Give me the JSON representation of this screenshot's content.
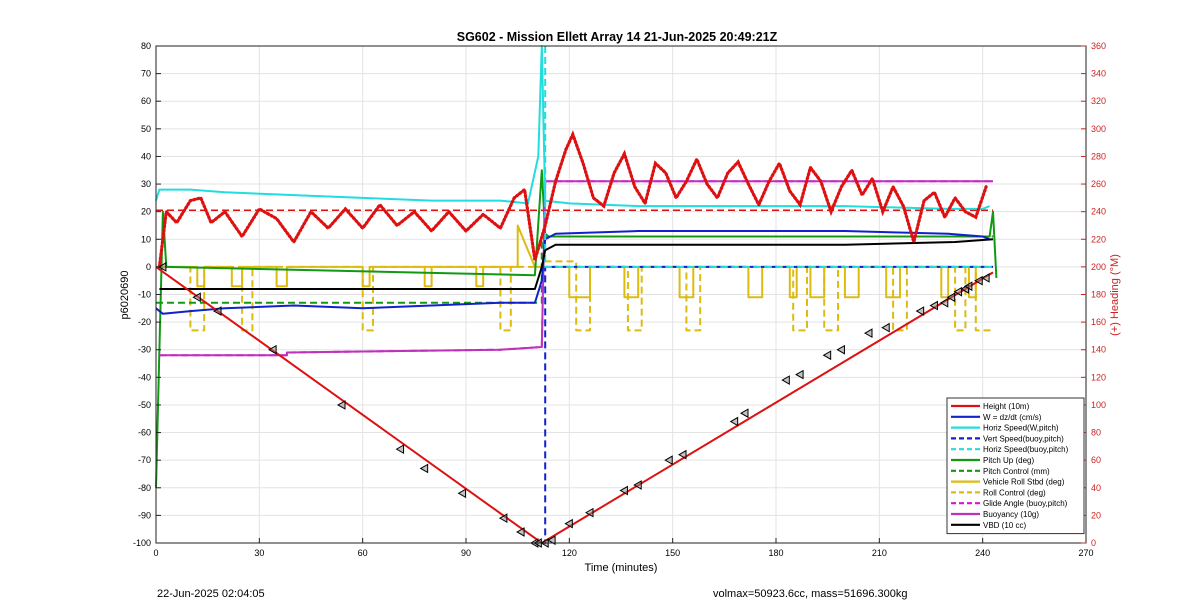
{
  "chart_data": {
    "type": "line",
    "title": "SG602 - Mission Ellett Array 14 21-Jun-2025 20:49:21Z",
    "xlabel": "Time (minutes)",
    "ylabel": "p6020690",
    "ylabel_right": "(+) Heading (°M)",
    "xlim": [
      0,
      270
    ],
    "ylim": [
      -100,
      80
    ],
    "ylim_right": [
      0,
      360
    ],
    "xticks": [
      0,
      30,
      60,
      90,
      120,
      150,
      180,
      210,
      240,
      270
    ],
    "yticks": [
      -100,
      -90,
      -80,
      -70,
      -60,
      -50,
      -40,
      -30,
      -20,
      -10,
      0,
      10,
      20,
      30,
      40,
      50,
      60,
      70,
      80
    ],
    "yticks_right": [
      0,
      20,
      40,
      60,
      80,
      100,
      120,
      140,
      160,
      180,
      200,
      220,
      240,
      260,
      280,
      300,
      320,
      340,
      360
    ],
    "grid": true,
    "legend_position": "bottom-right",
    "series": [
      {
        "name": "Height (10m)",
        "color": "#dd1111",
        "style": "solid",
        "width": 2,
        "x": [
          0,
          112,
          243
        ],
        "y": [
          0,
          -100,
          -2
        ]
      },
      {
        "name": "W = dz/dt (cm/s)",
        "color": "#1022cc",
        "style": "solid",
        "width": 2,
        "x": [
          0,
          2,
          10,
          20,
          40,
          60,
          80,
          100,
          110,
          112,
          113,
          116,
          140,
          170,
          200,
          230,
          240,
          242
        ],
        "y": [
          -15,
          -17,
          -16,
          -15,
          -14,
          -15,
          -14,
          -13,
          -13,
          -5,
          10,
          12,
          13,
          13,
          13,
          12,
          11,
          10
        ]
      },
      {
        "name": "Horiz Speed(W,pitch)",
        "color": "#22dddd",
        "style": "solid",
        "width": 2,
        "x": [
          0,
          1,
          10,
          20,
          40,
          60,
          80,
          100,
          108,
          111,
          112,
          113,
          120,
          140,
          170,
          200,
          230,
          240,
          242
        ],
        "y": [
          24,
          28,
          28,
          27,
          26,
          25,
          24,
          24,
          23,
          40,
          80,
          24,
          23,
          22,
          22,
          22,
          21,
          21,
          22
        ]
      },
      {
        "name": "Vert Speed(buoy,pitch)",
        "color": "#1022cc",
        "style": "dashed",
        "width": 2,
        "x": [
          112,
          113,
          113,
          243
        ],
        "y": [
          -100,
          -100,
          0,
          0
        ]
      },
      {
        "name": "Horiz Speed(buoy,pitch)",
        "color": "#22dddd",
        "style": "dashed",
        "width": 2,
        "x": [
          113,
          113,
          243
        ],
        "y": [
          80,
          0,
          0
        ]
      },
      {
        "name": "Pitch Up (deg)",
        "color": "#119911",
        "style": "solid",
        "width": 2,
        "x": [
          0,
          1,
          2,
          3,
          110,
          112,
          113,
          114,
          242,
          243,
          244
        ],
        "y": [
          -80,
          -30,
          20,
          0,
          -3,
          35,
          12,
          11,
          11,
          20,
          -4
        ]
      },
      {
        "name": "Pitch Control (mm)",
        "color": "#119911",
        "style": "dashed",
        "width": 2,
        "x": [
          0,
          112,
          112,
          243
        ],
        "y": [
          -13,
          -13,
          11,
          11
        ]
      },
      {
        "name": "Vehicle Roll Stbd (deg)",
        "color": "#ddbb11",
        "style": "solid",
        "width": 2,
        "x": [
          0,
          12,
          12,
          14,
          14,
          22,
          22,
          25,
          25,
          35,
          35,
          38,
          38,
          60,
          60,
          62,
          62,
          78,
          78,
          80,
          80,
          93,
          93,
          95,
          95,
          105,
          105,
          110,
          112,
          120,
          120,
          126,
          126,
          136,
          136,
          140,
          140,
          152,
          152,
          156,
          156,
          172,
          172,
          176,
          176,
          184,
          184,
          186,
          186,
          190,
          190,
          194,
          194,
          200,
          200,
          204,
          204,
          212,
          212,
          216,
          216,
          228,
          228,
          230,
          230,
          236,
          236,
          238,
          238,
          243
        ],
        "y": [
          0,
          0,
          -7,
          -7,
          0,
          0,
          -7,
          -7,
          0,
          0,
          -7,
          -7,
          0,
          0,
          -7,
          -7,
          0,
          0,
          -7,
          -7,
          0,
          0,
          -7,
          -7,
          0,
          0,
          15,
          0,
          0,
          0,
          -11,
          -11,
          0,
          0,
          -11,
          -11,
          0,
          0,
          -11,
          -11,
          0,
          0,
          -11,
          -11,
          0,
          0,
          -11,
          -11,
          0,
          0,
          -11,
          -11,
          0,
          0,
          -11,
          -11,
          0,
          0,
          -11,
          -11,
          0,
          0,
          -11,
          -11,
          0,
          0,
          -11,
          -11,
          0,
          0
        ]
      },
      {
        "name": "Roll Control (deg)",
        "color": "#ddbb11",
        "style": "dashed",
        "width": 2,
        "x": [
          0,
          10,
          10,
          14,
          14,
          25,
          25,
          28,
          28,
          60,
          60,
          63,
          63,
          100,
          100,
          103,
          103,
          112,
          112,
          122,
          122,
          126,
          126,
          137,
          137,
          141,
          141,
          154,
          154,
          158,
          158,
          185,
          185,
          189,
          189,
          194,
          194,
          198,
          198,
          214,
          214,
          218,
          218,
          232,
          232,
          235,
          235,
          238,
          238,
          243
        ],
        "y": [
          0,
          0,
          -23,
          -23,
          0,
          0,
          -23,
          -23,
          0,
          0,
          -23,
          -23,
          0,
          0,
          -23,
          -23,
          0,
          0,
          2,
          2,
          -23,
          -23,
          0,
          0,
          -23,
          -23,
          0,
          0,
          -23,
          -23,
          0,
          0,
          -23,
          -23,
          0,
          0,
          -23,
          -23,
          0,
          0,
          -23,
          -23,
          0,
          0,
          -23,
          -23,
          0,
          0,
          -23,
          -23
        ]
      },
      {
        "name": "Glide Angle (buoy,pitch)",
        "color": "#dd11dd",
        "style": "dashed",
        "width": 2,
        "x": [
          1,
          38,
          38,
          100,
          112,
          113,
          243
        ],
        "y": [
          -32,
          -32,
          -31,
          -30,
          -29,
          31,
          31
        ]
      },
      {
        "name": "Buoyancy (10g)",
        "color": "#bb33bb",
        "style": "solid",
        "width": 2,
        "x": [
          1,
          38,
          38,
          100,
          112,
          113,
          243
        ],
        "y": [
          -32,
          -32,
          -31,
          -30,
          -29,
          31,
          31
        ]
      },
      {
        "name": "VBD (10 cc)",
        "color": "#000000",
        "style": "solid",
        "width": 2,
        "x": [
          1,
          2,
          110,
          112,
          113,
          116,
          200,
          232,
          243
        ],
        "y": [
          -8,
          -8,
          -8,
          0,
          6,
          8,
          8,
          9,
          10
        ]
      }
    ],
    "heading": {
      "color": "#dd1111",
      "style": "dotted",
      "axis": "right",
      "x": [
        1,
        3,
        6,
        10,
        13,
        16,
        20,
        25,
        30,
        35,
        40,
        45,
        50,
        55,
        60,
        65,
        70,
        75,
        80,
        85,
        90,
        95,
        100,
        104,
        107,
        110,
        113,
        116,
        119,
        121,
        124,
        127,
        130,
        133,
        136,
        139,
        142,
        145,
        148,
        151,
        154,
        157,
        160,
        163,
        166,
        169,
        172,
        175,
        178,
        181,
        184,
        187,
        190,
        193,
        196,
        199,
        202,
        205,
        208,
        211,
        214,
        217,
        220,
        223,
        226,
        229,
        232,
        235,
        238,
        241
      ],
      "y": [
        200,
        240,
        232,
        248,
        250,
        232,
        240,
        222,
        242,
        235,
        218,
        240,
        228,
        242,
        228,
        245,
        230,
        240,
        226,
        240,
        226,
        238,
        228,
        250,
        256,
        205,
        230,
        262,
        285,
        296,
        275,
        250,
        244,
        268,
        282,
        258,
        246,
        275,
        268,
        250,
        262,
        278,
        260,
        250,
        268,
        276,
        260,
        245,
        262,
        275,
        255,
        245,
        272,
        262,
        240,
        258,
        270,
        252,
        264,
        240,
        258,
        244,
        218,
        248,
        254,
        236,
        250,
        240,
        236,
        258
      ]
    },
    "heading_target": {
      "color": "#dd1111",
      "style": "dashed",
      "x": [
        0,
        243
      ],
      "y_right": [
        241,
        241
      ]
    },
    "depth_markers": {
      "x": [
        2,
        12,
        18,
        34,
        54,
        71,
        78,
        89,
        101,
        106,
        110,
        111,
        113,
        115,
        120,
        126,
        136,
        140,
        149,
        153,
        168,
        171,
        183,
        187,
        195,
        199,
        207,
        212,
        222,
        226,
        229,
        231,
        233,
        235,
        236,
        239,
        241
      ],
      "y": [
        0,
        -11,
        -16,
        -30,
        -50,
        -66,
        -73,
        -82,
        -91,
        -96,
        -100,
        -100,
        -100,
        -99,
        -93,
        -89,
        -81,
        -79,
        -70,
        -68,
        -56,
        -53,
        -41,
        -39,
        -32,
        -30,
        -24,
        -22,
        -16,
        -14,
        -13,
        -11,
        -9,
        -8,
        -7,
        -5,
        -4
      ]
    }
  },
  "footer": {
    "left": "22-Jun-2025 02:04:05",
    "right": "volmax=50923.6cc, mass=51696.300kg"
  }
}
